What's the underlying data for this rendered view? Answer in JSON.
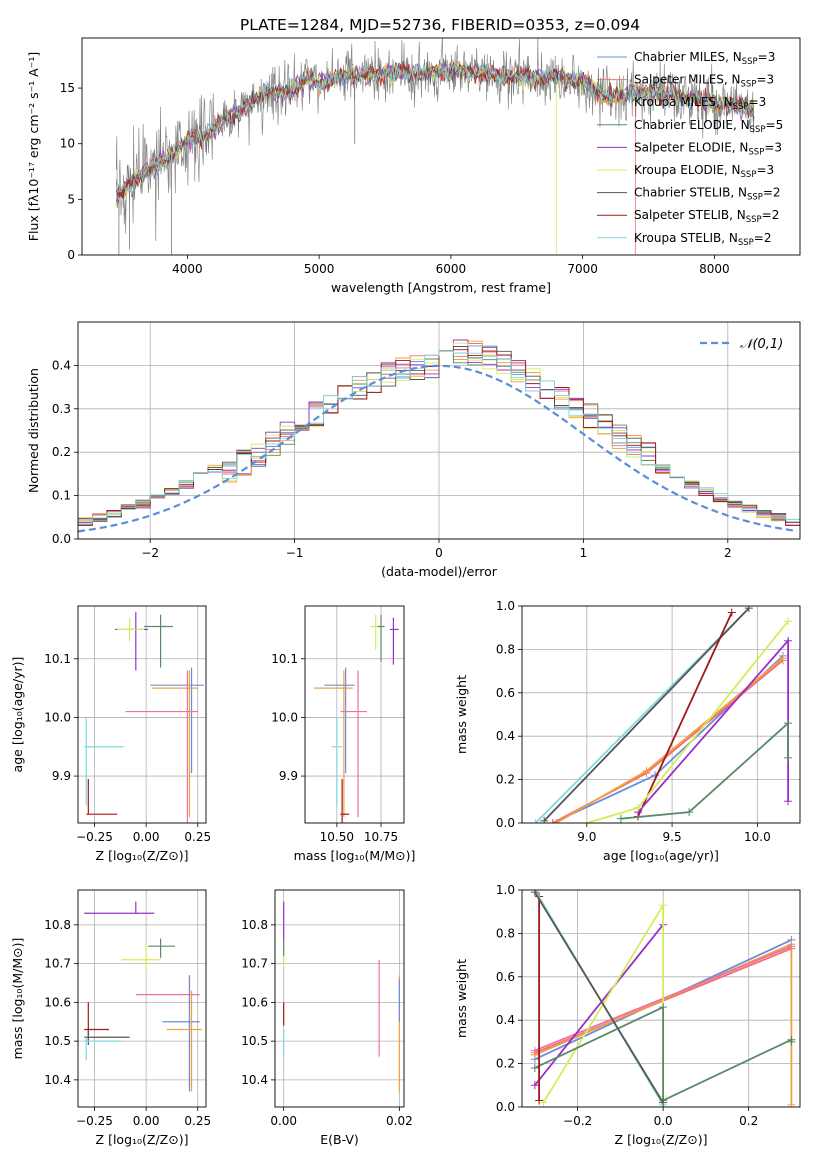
{
  "figure_title": "PLATE=1284, MJD=52736, FIBERID=0353, z=0.094",
  "colors": {
    "cmiles": "#6a8fd8",
    "smiles": "#f07070",
    "kmiles": "#f0a040",
    "celodie": "#5a8a6a",
    "selodie": "#9b30c8",
    "kelodie": "#d4ec5a",
    "cstelib": "#555555",
    "sstelib": "#a01818",
    "kstelib": "#80d8e0",
    "hist_extra": "#e890c0",
    "gauss": "#5b8ed8",
    "grid": "#b0b0b0"
  },
  "legend_spectrum": [
    {
      "label": "Chabrier MILES, N",
      "sub": "SSP",
      "suffix": "=3",
      "color": "#6a8fd8"
    },
    {
      "label": "Salpeter MILES, N",
      "sub": "SSP",
      "suffix": "=3",
      "color": "#f07070"
    },
    {
      "label": "Kroupa MILES, N",
      "sub": "SSP",
      "suffix": "=3",
      "color": "#f0a040"
    },
    {
      "label": "Chabrier ELODIE, N",
      "sub": "SSP",
      "suffix": "=5",
      "color": "#5a8a6a"
    },
    {
      "label": "Salpeter ELODIE, N",
      "sub": "SSP",
      "suffix": "=3",
      "color": "#9b30c8"
    },
    {
      "label": "Kroupa ELODIE, N",
      "sub": "SSP",
      "suffix": "=3",
      "color": "#d4ec5a"
    },
    {
      "label": "Chabrier STELIB, N",
      "sub": "SSP",
      "suffix": "=2",
      "color": "#555555"
    },
    {
      "label": "Salpeter STELIB, N",
      "sub": "SSP",
      "suffix": "=2",
      "color": "#a01818"
    },
    {
      "label": "Kroupa STELIB, N",
      "sub": "SSP",
      "suffix": "=2",
      "color": "#80d8e0"
    }
  ],
  "chart_data": [
    {
      "id": "spectrum",
      "type": "line",
      "xlabel": "wavelength [Angstrom, rest frame]",
      "ylabel": "Flux [fλ10⁻¹⁷ erg cm⁻² s⁻¹ A⁻¹]",
      "xlim": [
        3200,
        8650
      ],
      "ylim": [
        0,
        19.5
      ],
      "xticks": [
        4000,
        5000,
        6000,
        7000,
        8000
      ],
      "yticks": [
        0,
        5,
        10,
        15
      ],
      "x": [
        3500,
        3600,
        3700,
        3800,
        3900,
        4000,
        4100,
        4200,
        4300,
        4400,
        4500,
        4600,
        4700,
        4800,
        4900,
        5000,
        5200,
        5400,
        5600,
        5800,
        6000,
        6200,
        6400,
        6600,
        6800,
        7000,
        7200,
        7400,
        7600,
        7800,
        8000,
        8200,
        8300
      ],
      "model": [
        5.5,
        6.8,
        7.6,
        8.3,
        9.2,
        10.3,
        10.6,
        11.2,
        12.4,
        12.8,
        13.8,
        14.8,
        14.5,
        14.9,
        15.8,
        15.5,
        16.1,
        16.2,
        16.4,
        16.3,
        16.6,
        16.4,
        16.1,
        15.9,
        16.0,
        15.7,
        14.0,
        14.6,
        14.5,
        14.1,
        13.7,
        13.4,
        12.9
      ]
    },
    {
      "id": "residuals",
      "type": "histogram",
      "xlabel": "(data-model)/error",
      "ylabel": "Normed distribution",
      "xlim": [
        -2.5,
        2.5
      ],
      "ylim": [
        0,
        0.5
      ],
      "xticks": [
        -2,
        -1,
        0,
        1,
        2
      ],
      "yticks": [
        0.0,
        0.1,
        0.2,
        0.3,
        0.4
      ],
      "gauss_label": "𝒩(0,1)",
      "bin_width": 0.1
    },
    {
      "id": "age_vs_Z",
      "type": "errorbar",
      "xlabel": "Z [log₁₀(Z/Z⊙)]",
      "ylabel": "age  [log₁₀(age/yr)]",
      "xlim": [
        -0.33,
        0.29
      ],
      "ylim": [
        9.82,
        10.19
      ],
      "xticks": [
        -0.25,
        0.0,
        0.25
      ],
      "yticks": [
        9.9,
        10.0,
        10.1
      ],
      "points": [
        {
          "x": -0.05,
          "y": 10.15,
          "xerr": [
            0.1,
            0.06
          ],
          "yerr": [
            0.07,
            0.03
          ],
          "color": "#9b30c8"
        },
        {
          "x": -0.08,
          "y": 10.15,
          "xerr": [
            0.06,
            0.07
          ],
          "yerr": [
            0.02,
            0.02
          ],
          "color": "#d4ec5a"
        },
        {
          "x": 0.07,
          "y": 10.155,
          "xerr": [
            0.08,
            0.06
          ],
          "yerr": [
            0.07,
            0.02
          ],
          "color": "#5a8a6a"
        },
        {
          "x": 0.22,
          "y": 10.055,
          "xerr": [
            0.2,
            0.06
          ],
          "yerr": [
            0.15,
            0.03
          ],
          "color": "#6a8fd8"
        },
        {
          "x": 0.21,
          "y": 10.05,
          "xerr": [
            0.18,
            0.04
          ],
          "yerr": [
            0.22,
            0.03
          ],
          "color": "#f0a040"
        },
        {
          "x": 0.2,
          "y": 10.01,
          "xerr": [
            0.3,
            0.05
          ],
          "yerr": [
            0.2,
            0.07
          ],
          "color": "#f070a0"
        },
        {
          "x": -0.29,
          "y": 9.95,
          "xerr": [
            0.01,
            0.18
          ],
          "yerr": [
            0.1,
            0.05
          ],
          "color": "#80d8e0"
        },
        {
          "x": -0.28,
          "y": 9.835,
          "xerr": [
            0.01,
            0.14
          ],
          "yerr": [
            0.0,
            0.06
          ],
          "color": "#a01818"
        }
      ]
    },
    {
      "id": "age_vs_mass",
      "type": "errorbar",
      "xlabel": "mass [log₁₀(M/M⊙)]",
      "ylabel": "",
      "xlim": [
        10.32,
        10.88
      ],
      "ylim": [
        9.82,
        10.19
      ],
      "xticks": [
        10.5,
        10.75
      ],
      "yticks": [
        9.9,
        10.0,
        10.1
      ],
      "points": [
        {
          "x": 10.82,
          "y": 10.15,
          "xerr": [
            0.02,
            0.03
          ],
          "yerr": [
            0.06,
            0.02
          ],
          "color": "#9b30c8"
        },
        {
          "x": 10.72,
          "y": 10.155,
          "xerr": [
            0.03,
            0.03
          ],
          "yerr": [
            0.04,
            0.02
          ],
          "color": "#d4ec5a"
        },
        {
          "x": 10.75,
          "y": 10.155,
          "xerr": [
            0.02,
            0.02
          ],
          "yerr": [
            0.06,
            0.02
          ],
          "color": "#5a8a6a"
        },
        {
          "x": 10.55,
          "y": 10.055,
          "xerr": [
            0.12,
            0.05
          ],
          "yerr": [
            0.15,
            0.03
          ],
          "color": "#6a8fd8"
        },
        {
          "x": 10.54,
          "y": 10.05,
          "xerr": [
            0.17,
            0.05
          ],
          "yerr": [
            0.22,
            0.03
          ],
          "color": "#f0a040"
        },
        {
          "x": 10.62,
          "y": 10.01,
          "xerr": [
            0.1,
            0.05
          ],
          "yerr": [
            0.18,
            0.07
          ],
          "color": "#f070a0"
        },
        {
          "x": 10.5,
          "y": 9.95,
          "xerr": [
            0.03,
            0.03
          ],
          "yerr": [
            0.1,
            0.05
          ],
          "color": "#80d8e0"
        },
        {
          "x": 10.53,
          "y": 9.835,
          "xerr": [
            0.01,
            0.04
          ],
          "yerr": [
            0.05,
            0.06
          ],
          "color": "#a01818"
        }
      ]
    },
    {
      "id": "weight_vs_age",
      "type": "line",
      "xlabel": "age  [log₁₀(age/yr)]",
      "ylabel": "mass weight",
      "xlim": [
        8.62,
        10.25
      ],
      "ylim": [
        0,
        1
      ],
      "xticks": [
        9.0,
        9.5,
        10.0
      ],
      "yticks": [
        0.0,
        0.2,
        0.4,
        0.6,
        0.8,
        1.0
      ],
      "series": [
        {
          "color": "#80d8e0",
          "x": [
            8.7,
            9.95
          ],
          "y": [
            0.0,
            0.99
          ]
        },
        {
          "color": "#6a8fd8",
          "x": [
            8.8,
            9.4,
            10.15
          ],
          "y": [
            0.0,
            0.22,
            0.77
          ]
        },
        {
          "color": "#f07070",
          "x": [
            8.8,
            9.35,
            10.15
          ],
          "y": [
            0.0,
            0.23,
            0.75
          ]
        },
        {
          "color": "#f0a040",
          "x": [
            8.82,
            9.35,
            10.15
          ],
          "y": [
            0.0,
            0.24,
            0.76
          ]
        },
        {
          "color": "#555555",
          "x": [
            8.75,
            9.95
          ],
          "y": [
            0.01,
            0.99
          ]
        },
        {
          "color": "#a01818",
          "x": [
            9.3,
            9.85
          ],
          "y": [
            0.03,
            0.97
          ]
        },
        {
          "color": "#9b30c8",
          "x": [
            9.3,
            10.18,
            10.18
          ],
          "y": [
            0.05,
            0.84,
            0.1
          ]
        },
        {
          "color": "#d4ec5a",
          "x": [
            9.0,
            9.3,
            10.18
          ],
          "y": [
            0.0,
            0.07,
            0.93
          ]
        },
        {
          "color": "#5a8a6a",
          "x": [
            9.2,
            9.6,
            10.18,
            10.18
          ],
          "y": [
            0.02,
            0.05,
            0.46,
            0.3
          ]
        }
      ]
    },
    {
      "id": "mass_vs_Z",
      "type": "errorbar",
      "xlabel": "Z [log₁₀(Z/Z⊙)]",
      "ylabel": "mass [log₁₀(M/M⊙)]",
      "xlim": [
        -0.33,
        0.29
      ],
      "ylim": [
        10.33,
        10.89
      ],
      "xticks": [
        -0.25,
        0.0,
        0.25
      ],
      "yticks": [
        10.4,
        10.5,
        10.6,
        10.7,
        10.8
      ],
      "points": [
        {
          "x": -0.05,
          "y": 10.83,
          "xerr": [
            0.25,
            0.09
          ],
          "yerr": [
            0.0,
            0.03
          ],
          "color": "#9b30c8"
        },
        {
          "x": 0.07,
          "y": 10.745,
          "xerr": [
            0.06,
            0.07
          ],
          "yerr": [
            0.03,
            0.02
          ],
          "color": "#5a8a6a"
        },
        {
          "x": 0.0,
          "y": 10.71,
          "xerr": [
            0.12,
            0.07
          ],
          "yerr": [
            0.03,
            0.04
          ],
          "color": "#d4ec5a"
        },
        {
          "x": 0.21,
          "y": 10.62,
          "xerr": [
            0.26,
            0.05
          ],
          "yerr": [
            0.24,
            0.05
          ],
          "color": "#f070a0"
        },
        {
          "x": 0.21,
          "y": 10.55,
          "xerr": [
            0.13,
            0.05
          ],
          "yerr": [
            0.18,
            0.12
          ],
          "color": "#6a8fd8"
        },
        {
          "x": 0.22,
          "y": 10.53,
          "xerr": [
            0.12,
            0.05
          ],
          "yerr": [
            0.16,
            0.1
          ],
          "color": "#f0a040"
        },
        {
          "x": -0.28,
          "y": 10.53,
          "xerr": [
            0.02,
            0.1
          ],
          "yerr": [
            0.02,
            0.07
          ],
          "color": "#a01818"
        },
        {
          "x": -0.28,
          "y": 10.51,
          "xerr": [
            0.02,
            0.2
          ],
          "yerr": [
            0.02,
            0.02
          ],
          "color": "#555555"
        },
        {
          "x": -0.29,
          "y": 10.5,
          "xerr": [
            0.01,
            0.17
          ],
          "yerr": [
            0.05,
            0.01
          ],
          "color": "#80d8e0"
        }
      ]
    },
    {
      "id": "mass_vs_EBV",
      "type": "errorbar",
      "xlabel": "E(B-V)",
      "ylabel": "",
      "xlim": [
        -0.0015,
        0.0208
      ],
      "ylim": [
        10.33,
        10.89
      ],
      "xticks": [
        0.0,
        0.02
      ],
      "yticks": [
        10.4,
        10.5,
        10.6,
        10.7,
        10.8
      ],
      "points": [
        {
          "x": 0.0,
          "y": 10.8,
          "xerr": [
            0,
            0
          ],
          "yerr": [
            0.04,
            0.06
          ],
          "color": "#9b30c8"
        },
        {
          "x": 0.0,
          "y": 10.72,
          "xerr": [
            0,
            0
          ],
          "yerr": [
            0.03,
            0.03
          ],
          "color": "#d4ec5a"
        },
        {
          "x": 0.0,
          "y": 10.74,
          "xerr": [
            0,
            0
          ],
          "yerr": [
            0.02,
            0.02
          ],
          "color": "#5a8a6a"
        },
        {
          "x": 0.0,
          "y": 10.56,
          "xerr": [
            0,
            0
          ],
          "yerr": [
            0.02,
            0.04
          ],
          "color": "#a01818"
        },
        {
          "x": 0.0,
          "y": 10.5,
          "xerr": [
            0,
            0
          ],
          "yerr": [
            0.04,
            0.03
          ],
          "color": "#80d8e0"
        },
        {
          "x": 0.0165,
          "y": 10.58,
          "xerr": [
            0,
            0
          ],
          "yerr": [
            0.12,
            0.13
          ],
          "color": "#f070a0"
        },
        {
          "x": 0.02,
          "y": 10.55,
          "xerr": [
            0,
            0
          ],
          "yerr": [
            0.18,
            0.12
          ],
          "color": "#f0a040"
        },
        {
          "x": 0.02,
          "y": 10.6,
          "xerr": [
            0,
            0
          ],
          "yerr": [
            0.05,
            0.06
          ],
          "color": "#6a8fd8"
        }
      ]
    },
    {
      "id": "weight_vs_Z",
      "type": "line",
      "xlabel": "Z [log₁₀(Z/Z⊙)]",
      "ylabel": "mass weight",
      "xlim": [
        -0.33,
        0.32
      ],
      "ylim": [
        0,
        1
      ],
      "xticks": [
        -0.2,
        0.0,
        0.2
      ],
      "yticks": [
        0.0,
        0.2,
        0.4,
        0.6,
        0.8,
        1.0
      ],
      "series": [
        {
          "color": "#6a8fd8",
          "x": [
            -0.3,
            0.3
          ],
          "y": [
            0.22,
            0.77
          ]
        },
        {
          "color": "#f07070",
          "x": [
            -0.3,
            0.3
          ],
          "y": [
            0.25,
            0.73
          ]
        },
        {
          "color": "#f0a040",
          "x": [
            -0.3,
            0.3,
            0.3
          ],
          "y": [
            0.24,
            0.75,
            0.01
          ]
        },
        {
          "color": "#f070a0",
          "x": [
            -0.3,
            0.3
          ],
          "y": [
            0.26,
            0.74
          ]
        },
        {
          "color": "#9b30c8",
          "x": [
            -0.3,
            0.0
          ],
          "y": [
            0.1,
            0.84
          ]
        },
        {
          "color": "#d4ec5a",
          "x": [
            -0.28,
            0.0,
            0.0
          ],
          "y": [
            0.02,
            0.93,
            0.05
          ]
        },
        {
          "color": "#5a8a6a",
          "x": [
            -0.3,
            0.0,
            0.0,
            0.3,
            0.3
          ],
          "y": [
            0.18,
            0.46,
            0.03,
            0.31,
            0.3
          ]
        },
        {
          "color": "#a01818",
          "x": [
            -0.29,
            -0.29
          ],
          "y": [
            0.97,
            0.03
          ]
        },
        {
          "color": "#80d8e0",
          "x": [
            -0.3,
            0.0
          ],
          "y": [
            1.0,
            0.01
          ]
        },
        {
          "color": "#555555",
          "x": [
            -0.3,
            0.0
          ],
          "y": [
            0.99,
            0.02
          ]
        }
      ]
    }
  ]
}
